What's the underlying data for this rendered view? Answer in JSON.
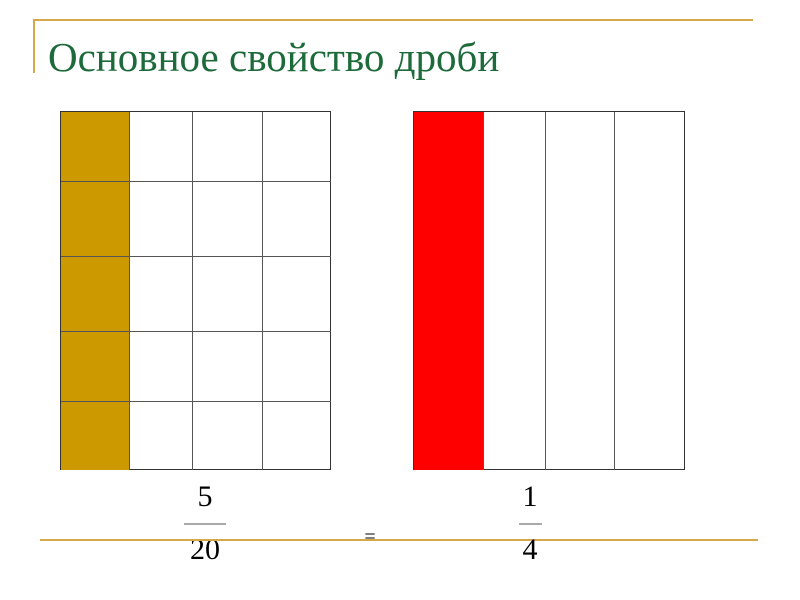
{
  "title": "Основное свойство дроби",
  "left_model": {
    "rows": 5,
    "cols": 4,
    "shaded_column": 1,
    "shade_color": "#cc9900"
  },
  "right_model": {
    "rows": 1,
    "cols": 4,
    "shaded_column": 1,
    "shade_color": "#ff0000"
  },
  "equation": {
    "left": {
      "numerator": "5",
      "denominator": "20"
    },
    "operator": "=",
    "right": {
      "numerator": "1",
      "denominator": "4"
    }
  },
  "accent_color": "#d4a84b",
  "title_color": "#1d6a3a"
}
